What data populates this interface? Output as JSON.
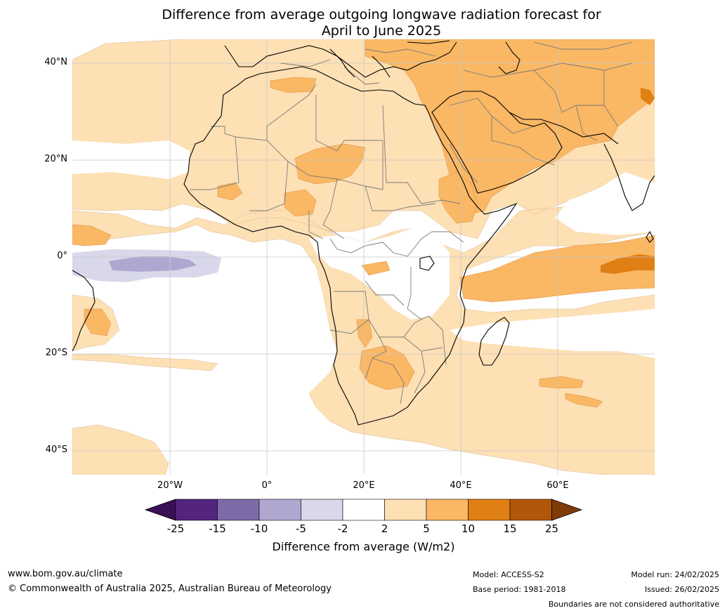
{
  "title_line1": "Difference from average outgoing longwave radiation forecast for",
  "title_line2": "April to June 2025",
  "lat_labels": [
    "40°N",
    "20°N",
    "0°",
    "20°S",
    "40°S"
  ],
  "lon_labels": [
    "20°W",
    "0°",
    "20°E",
    "40°E",
    "60°E"
  ],
  "colorbar": {
    "label": "Difference from average (W/m2)",
    "ticks": [
      "-25",
      "-15",
      "-10",
      "-5",
      "-2",
      "2",
      "5",
      "10",
      "15",
      "25"
    ],
    "colors": [
      "#3b0f55",
      "#55247f",
      "#7f6aa8",
      "#b0a7d1",
      "#d8d8ea",
      "#ffffff",
      "#fde0b4",
      "#fab764",
      "#e07f14",
      "#b25709",
      "#7f3b08"
    ]
  },
  "footer": {
    "website": "www.bom.gov.au/climate",
    "copyright": "© Commonwealth of Australia 2025, Australian Bureau of Meteorology",
    "model": "Model: ACCESS-S2",
    "base_period": "Base period: 1981-2018",
    "model_run": "Model run: 24/02/2025",
    "issued": "Issued: 26/02/2025",
    "disclaimer": "Boundaries are not considered authoritative"
  }
}
